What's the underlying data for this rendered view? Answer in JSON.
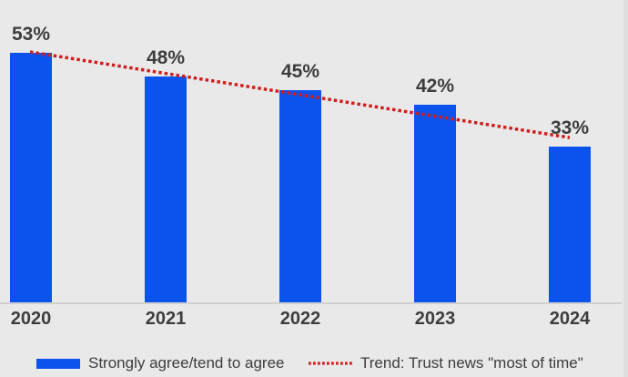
{
  "chart_data": {
    "type": "bar",
    "title": "",
    "categories": [
      "2020",
      "2021",
      "2022",
      "2023",
      "2024"
    ],
    "values": [
      53,
      48,
      45,
      42,
      33
    ],
    "value_labels": [
      "53%",
      "48%",
      "45%",
      "42%",
      "33%"
    ],
    "series_name": "Strongly agree/tend to agree",
    "trend": {
      "label": "Trend: Trust news \"most of time\"",
      "style": "dotted",
      "x": [
        "2020",
        "2024"
      ],
      "approx_values": [
        53.2,
        35.0
      ]
    },
    "ylim": [
      0,
      60
    ],
    "grid": false,
    "legend_position": "bottom"
  },
  "legend": {
    "items": [
      {
        "label": "Strongly agree/tend to agree",
        "swatch": "blue-bar"
      },
      {
        "label": "Trend: Trust news \"most of time\"",
        "swatch": "red-dotted-line"
      }
    ]
  },
  "colors": {
    "bar": "#0c52ed",
    "trend": "#cf1e1e",
    "background": "#e9e9e9",
    "text": "#3d3d3d",
    "axis_line": "#d0d0d0"
  }
}
